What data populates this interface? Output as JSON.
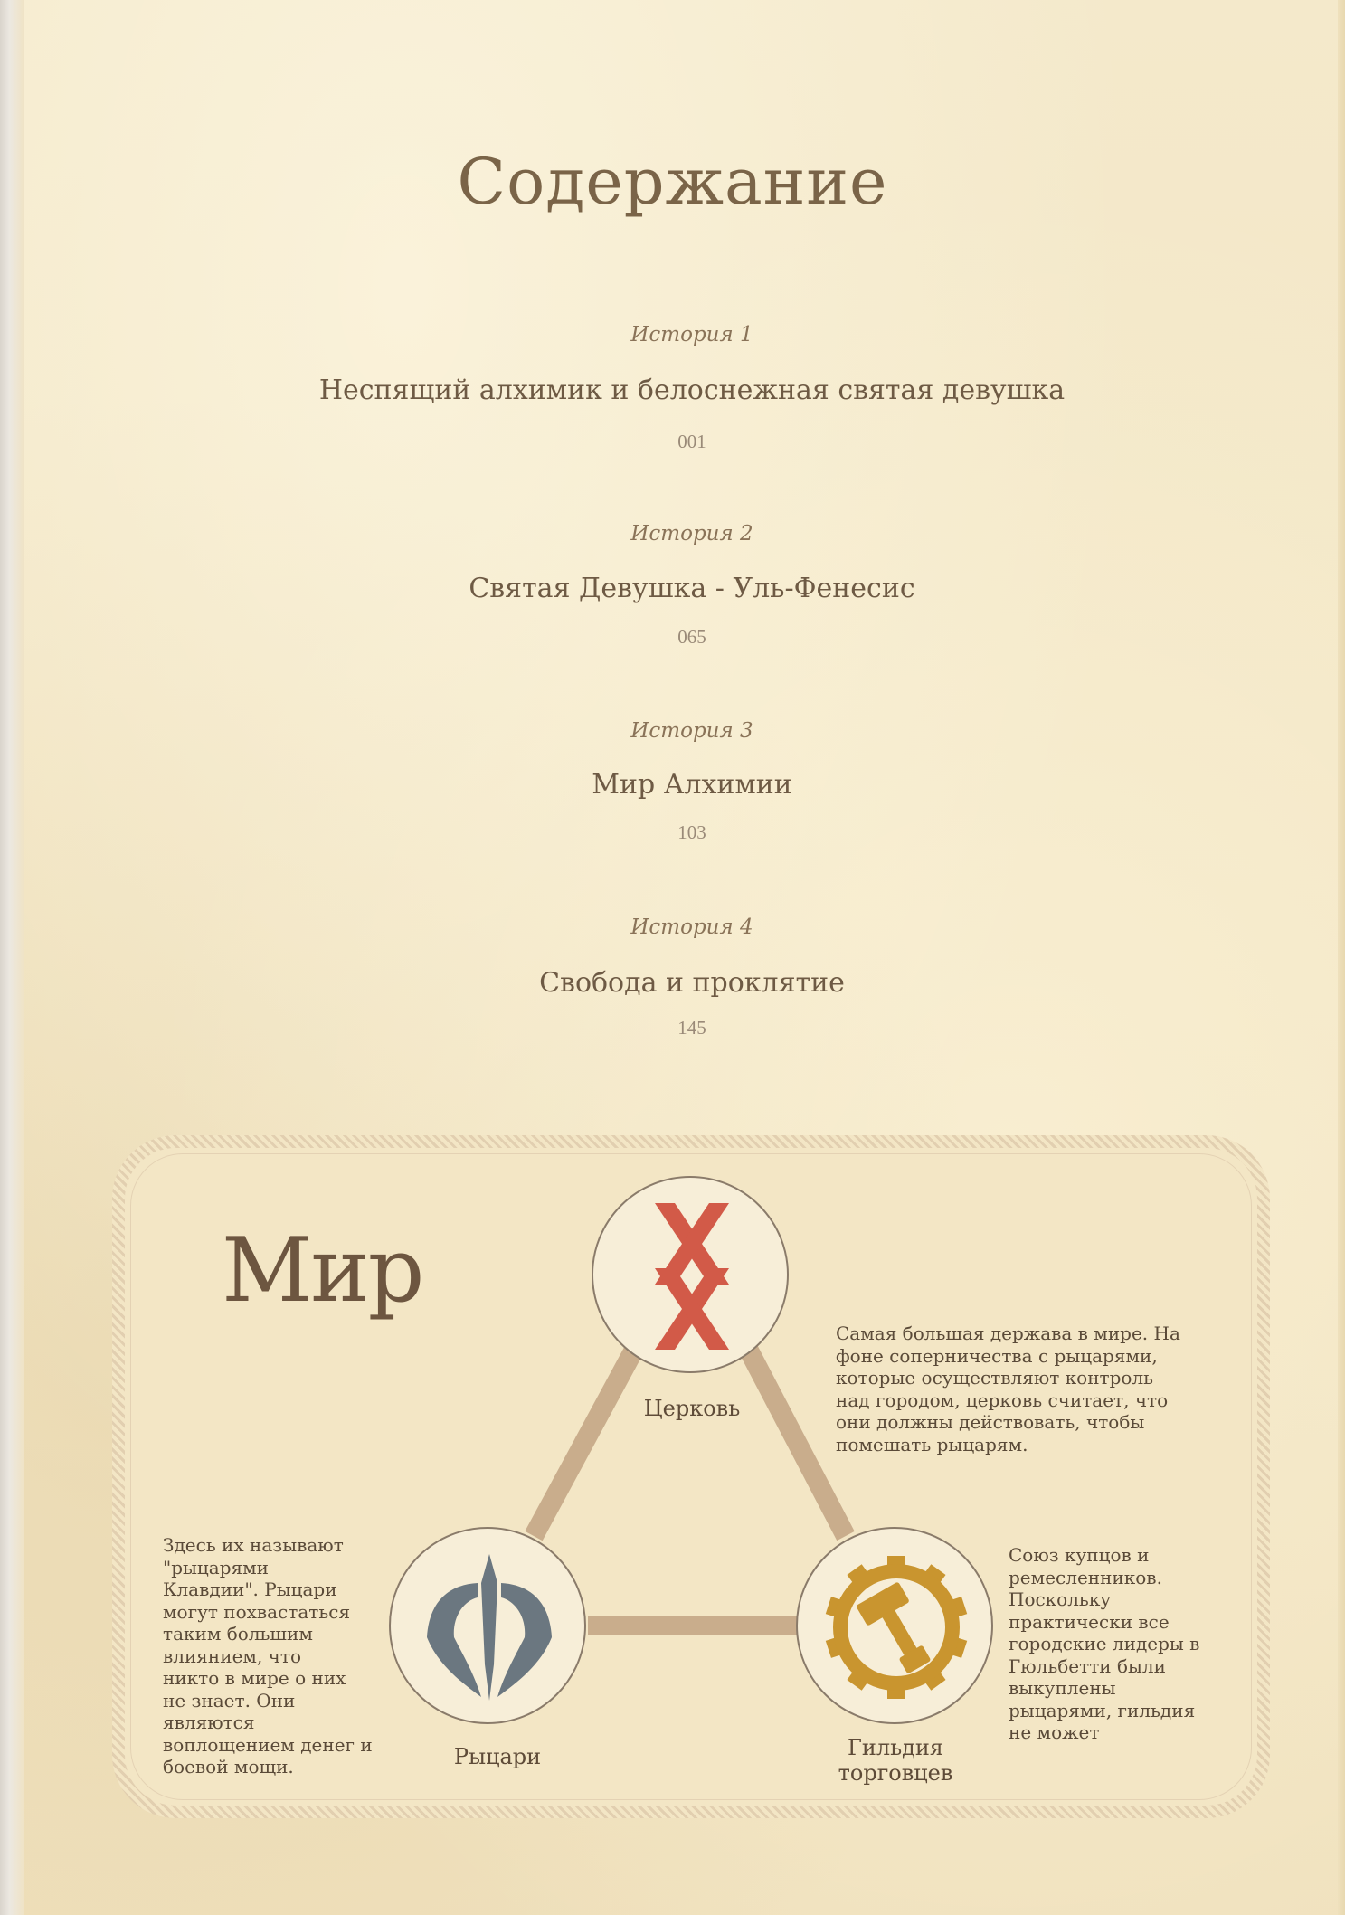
{
  "title": "Содержание",
  "toc": [
    {
      "label": "История 1",
      "name": "Неспящий алхимик и белоснежная святая девушка",
      "page": "001"
    },
    {
      "label": "История 2",
      "name": "Святая Девушка - Уль-Фенесис",
      "page": "065"
    },
    {
      "label": "История 3",
      "name": "Мир Алхимии",
      "page": "103"
    },
    {
      "label": "История 4",
      "name": "Свобода и проклятие",
      "page": "145"
    }
  ],
  "world": {
    "title": "Мир",
    "church": {
      "caption": "Церковь",
      "icon": "red-rune-icon",
      "color": "#d25a48",
      "description": [
        "Самая большая держава в мире. На",
        "фоне соперничества с рыцарями,",
        "которые осуществляют контроль",
        "над городом, церковь считает, что",
        "они должны действовать, чтобы",
        "помешать рыцарям."
      ]
    },
    "knights": {
      "caption": "Рыцари",
      "icon": "trident-crest-icon",
      "color": "#6b7780",
      "description": [
        "Здесь их называют",
        "\"рыцарями",
        "Клавдии\". Рыцари",
        "могут похвастаться",
        "таким большим",
        "влиянием, что",
        "никто в мире о них",
        "не знает. Они",
        "являются",
        "воплощением денег и",
        "боевой мощи."
      ]
    },
    "guild": {
      "caption": [
        "Гильдия",
        "торговцев"
      ],
      "icon": "gear-hammer-icon",
      "color": "#c9952f",
      "description": [
        "Союз купцов и",
        "ремесленников.",
        "Поскольку",
        "практически все",
        "городские лидеры в",
        "Гюльбетти были",
        "выкуплены",
        "рыцарями, гильдия",
        "не может"
      ]
    },
    "link_color": "#c9ad8c"
  }
}
